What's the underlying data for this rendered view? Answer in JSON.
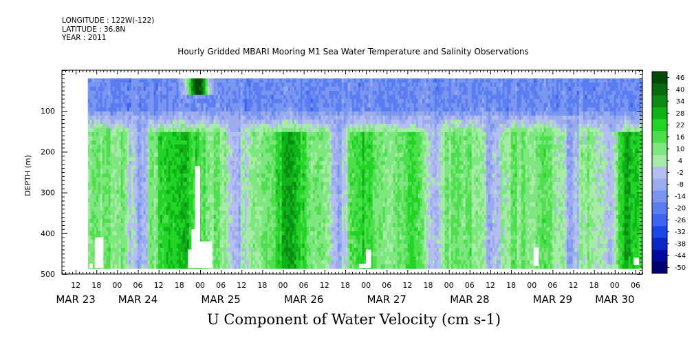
{
  "meta": {
    "longitude": "LONGITUDE : 122W(-122)",
    "latitude": "LATITUDE : 36.8N",
    "year": "YEAR : 2011"
  },
  "chart_data": {
    "type": "heatmap",
    "title": "Hourly Gridded MBARI Mooring M1 Sea Water Temperature and Salinity Observations",
    "xlabel": "U Component of Water Velocity (cm s-1)",
    "ylabel": "DEPTH (m)",
    "xlim_hours": [
      0,
      168
    ],
    "x_start": "MAR 23 08:00",
    "ylim": [
      500,
      0
    ],
    "y_ticks": [
      {
        "value": 100,
        "label": "100"
      },
      {
        "value": 200,
        "label": "200"
      },
      {
        "value": 300,
        "label": "300"
      },
      {
        "value": 400,
        "label": "400"
      },
      {
        "value": 500,
        "label": "500"
      }
    ],
    "x_ticks": [
      {
        "hour": 4,
        "label": "12"
      },
      {
        "hour": 10,
        "label": "18"
      },
      {
        "hour": 16,
        "label": "00"
      },
      {
        "hour": 22,
        "label": "06"
      },
      {
        "hour": 28,
        "label": "12"
      },
      {
        "hour": 34,
        "label": "18"
      },
      {
        "hour": 40,
        "label": "00"
      },
      {
        "hour": 46,
        "label": "06"
      },
      {
        "hour": 52,
        "label": "12"
      },
      {
        "hour": 58,
        "label": "18"
      },
      {
        "hour": 64,
        "label": "00"
      },
      {
        "hour": 70,
        "label": "06"
      },
      {
        "hour": 76,
        "label": "12"
      },
      {
        "hour": 82,
        "label": "18"
      },
      {
        "hour": 88,
        "label": "00"
      },
      {
        "hour": 94,
        "label": "06"
      },
      {
        "hour": 100,
        "label": "12"
      },
      {
        "hour": 106,
        "label": "18"
      },
      {
        "hour": 112,
        "label": "00"
      },
      {
        "hour": 118,
        "label": "06"
      },
      {
        "hour": 124,
        "label": "12"
      },
      {
        "hour": 130,
        "label": "18"
      },
      {
        "hour": 136,
        "label": "00"
      },
      {
        "hour": 142,
        "label": "06"
      },
      {
        "hour": 148,
        "label": "12"
      },
      {
        "hour": 154,
        "label": "18"
      },
      {
        "hour": 160,
        "label": "00"
      },
      {
        "hour": 166,
        "label": "06"
      }
    ],
    "day_labels": [
      {
        "hour": 4,
        "label": "MAR 23"
      },
      {
        "hour": 22,
        "label": "MAR 24"
      },
      {
        "hour": 46,
        "label": "MAR 25"
      },
      {
        "hour": 70,
        "label": "MAR 26"
      },
      {
        "hour": 94,
        "label": "MAR 27"
      },
      {
        "hour": 118,
        "label": "MAR 28"
      },
      {
        "hour": 142,
        "label": "MAR 29"
      },
      {
        "hour": 160,
        "label": "MAR 30"
      }
    ],
    "data_extent": {
      "hour_start": 7.5,
      "hour_end": 168,
      "depth_top": 20,
      "depth_bottom": 485
    },
    "colorbar": {
      "levels": [
        -50,
        -44,
        -38,
        -32,
        -26,
        -20,
        -14,
        -8,
        -2,
        4,
        10,
        16,
        22,
        28,
        34,
        40,
        46
      ],
      "labels": [
        "46",
        "40",
        "34",
        "28",
        "22",
        "16",
        "10",
        "4",
        "-2",
        "-8",
        "-14",
        "-20",
        "-26",
        "-32",
        "-38",
        "-44",
        "-50"
      ]
    },
    "field_model": {
      "surface_layer": {
        "depth_max": 90,
        "typical_value": -14
      },
      "deep_layer": {
        "depth_min": 150,
        "typical_value": 14
      },
      "strong_positive_hours": [
        30,
        36,
        64,
        68,
        86,
        102,
        162,
        165
      ],
      "strong_positive_value": 28,
      "negative_columns_hours": [
        4,
        22,
        50,
        80,
        106,
        124,
        147,
        158
      ],
      "negative_column_value": -10,
      "surface_positive_hours": [
        38,
        40
      ],
      "surface_positive_value": 30
    },
    "missing_blocks": [
      {
        "hour_start": 8.0,
        "hour_end": 9.0,
        "depth_top": 475,
        "depth_bottom": 485
      },
      {
        "hour_start": 9.5,
        "hour_end": 12.0,
        "depth_top": 410,
        "depth_bottom": 485
      },
      {
        "hour_start": 38.5,
        "hour_end": 40.0,
        "depth_top": 235,
        "depth_bottom": 485
      },
      {
        "hour_start": 37.5,
        "hour_end": 38.5,
        "depth_top": 390,
        "depth_bottom": 485
      },
      {
        "hour_start": 36.5,
        "hour_end": 37.5,
        "depth_top": 440,
        "depth_bottom": 485
      },
      {
        "hour_start": 40.0,
        "hour_end": 43.5,
        "depth_top": 420,
        "depth_bottom": 485
      },
      {
        "hour_start": 88.0,
        "hour_end": 89.5,
        "depth_top": 440,
        "depth_bottom": 485
      },
      {
        "hour_start": 86.0,
        "hour_end": 88.0,
        "depth_top": 475,
        "depth_bottom": 485
      },
      {
        "hour_start": 136.5,
        "hour_end": 138.0,
        "depth_top": 435,
        "depth_bottom": 480
      },
      {
        "hour_start": 165.5,
        "hour_end": 167.0,
        "depth_top": 460,
        "depth_bottom": 478
      }
    ]
  }
}
